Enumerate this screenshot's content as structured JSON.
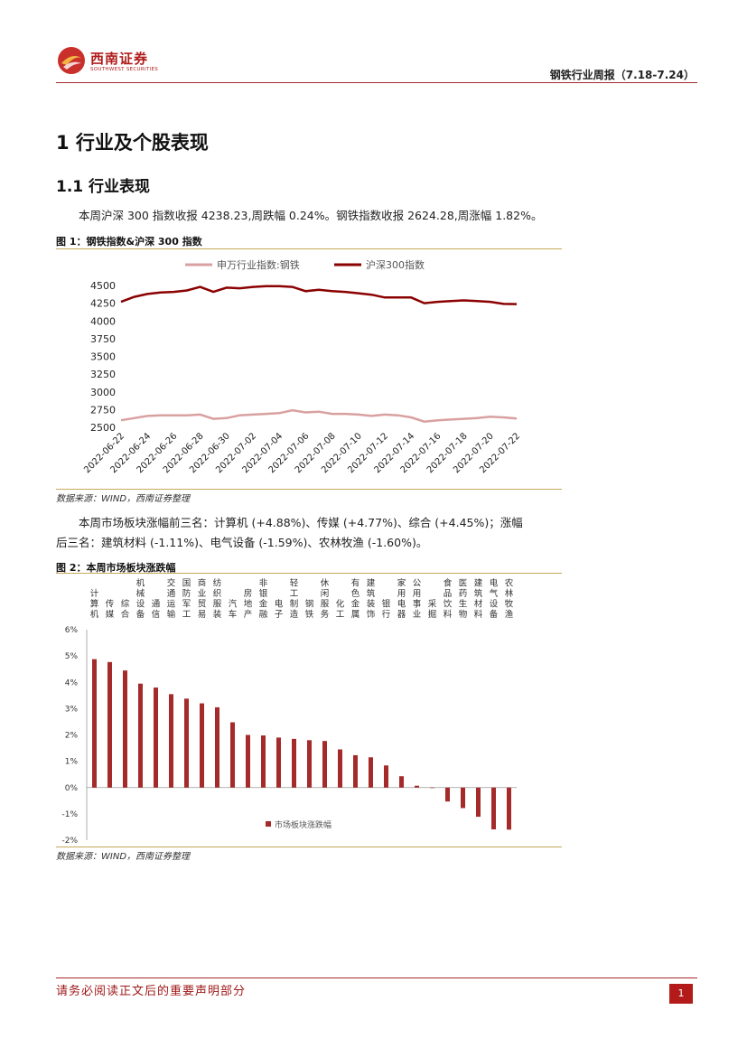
{
  "header": {
    "logo_cn": "西南证券",
    "logo_en": "SOUTHWEST SECURITIES",
    "report_title": "钢铁行业周报（7.18-7.24）"
  },
  "section1": {
    "title": "1 行业及个股表现"
  },
  "section11": {
    "title": "1.1 行业表现"
  },
  "para1": "本周沪深 300 指数收报 4238.23,周跌幅 0.24%。钢铁指数收报 2624.28,周涨幅 1.82%。",
  "fig1": {
    "title": "图 1：钢铁指数&沪深 300 指数",
    "source": "数据来源：WIND，西南证券整理"
  },
  "para2_line1": "本周市场板块涨幅前三名：计算机 (+4.88%)、传媒 (+4.77%)、综合 (+4.45%)；涨幅",
  "para2_line2": "后三名：建筑材料 (-1.11%)、电气设备 (-1.59%)、农林牧渔 (-1.60%)。",
  "fig2": {
    "title": "图 2：本周市场板块涨跌幅",
    "source": "数据来源：WIND，西南证券整理"
  },
  "footer": {
    "disclaimer": "请务必阅读正文后的重要声明部分",
    "page": "1"
  },
  "colors": {
    "steel": "#d9a0a0",
    "hs300": "#8b0000",
    "bar": "#a52a2a",
    "accent": "#b01c1c"
  },
  "chart_data": [
    {
      "type": "line",
      "legend_placement": "top",
      "x": [
        "2022-06-22",
        "2022-06-23",
        "2022-06-24",
        "2022-06-25",
        "2022-06-26",
        "2022-06-27",
        "2022-06-28",
        "2022-06-29",
        "2022-06-30",
        "2022-07-01",
        "2022-07-02",
        "2022-07-03",
        "2022-07-04",
        "2022-07-05",
        "2022-07-06",
        "2022-07-07",
        "2022-07-08",
        "2022-07-09",
        "2022-07-10",
        "2022-07-11",
        "2022-07-12",
        "2022-07-13",
        "2022-07-14",
        "2022-07-15",
        "2022-07-16",
        "2022-07-17",
        "2022-07-18",
        "2022-07-19",
        "2022-07-20",
        "2022-07-21",
        "2022-07-22"
      ],
      "tick_labels": [
        "2022-06-22",
        "2022-06-24",
        "2022-06-26",
        "2022-06-28",
        "2022-06-30",
        "2022-07-02",
        "2022-07-04",
        "2022-07-06",
        "2022-07-08",
        "2022-07-10",
        "2022-07-12",
        "2022-07-14",
        "2022-07-16",
        "2022-07-18",
        "2022-07-20",
        "2022-07-22"
      ],
      "ylim": [
        2500,
        4500
      ],
      "yticks": [
        2500,
        2750,
        3000,
        3250,
        3500,
        3750,
        4000,
        4250,
        4500
      ],
      "series": [
        {
          "name": "申万行业指数:钢铁",
          "values": [
            2600,
            2630,
            2660,
            2670,
            2670,
            2670,
            2680,
            2620,
            2630,
            2670,
            2680,
            2690,
            2700,
            2740,
            2710,
            2720,
            2690,
            2690,
            2680,
            2660,
            2680,
            2670,
            2640,
            2580,
            2600,
            2610,
            2620,
            2630,
            2650,
            2640,
            2624
          ]
        },
        {
          "name": "沪深300指数",
          "values": [
            4270,
            4340,
            4380,
            4400,
            4410,
            4430,
            4480,
            4410,
            4470,
            4460,
            4480,
            4490,
            4490,
            4480,
            4420,
            4440,
            4420,
            4410,
            4390,
            4370,
            4330,
            4330,
            4330,
            4250,
            4270,
            4280,
            4290,
            4280,
            4270,
            4240,
            4238
          ]
        }
      ]
    },
    {
      "type": "bar",
      "categories": [
        "计算机",
        "传媒",
        "综合",
        "机械设备",
        "通信",
        "交通运输",
        "国防军工",
        "商业贸易",
        "纺织服装",
        "汽车",
        "房地产",
        "非银金融",
        "电子",
        "轻工制造",
        "钢铁",
        "休闲服务",
        "化工",
        "有色金属",
        "建筑装饰",
        "银行",
        "家用电器",
        "公用事业",
        "采掘",
        "食品饮料",
        "医药生物",
        "建筑材料",
        "电气设备",
        "农林牧渔"
      ],
      "series": [
        {
          "name": "市场板块涨跌幅",
          "values": [
            4.88,
            4.77,
            4.45,
            3.95,
            3.8,
            3.55,
            3.38,
            3.2,
            3.05,
            2.48,
            2.0,
            1.98,
            1.9,
            1.85,
            1.8,
            1.77,
            1.45,
            1.23,
            1.15,
            0.84,
            0.43,
            0.07,
            0.0,
            -0.53,
            -0.78,
            -1.11,
            -1.59,
            -1.6
          ]
        }
      ],
      "yticks": [
        "6%",
        "5%",
        "4%",
        "3%",
        "2%",
        "1%",
        "0%",
        "-1%",
        "-2%"
      ],
      "ylim": [
        -2,
        6
      ],
      "legend_placement": "bottom-center"
    }
  ]
}
